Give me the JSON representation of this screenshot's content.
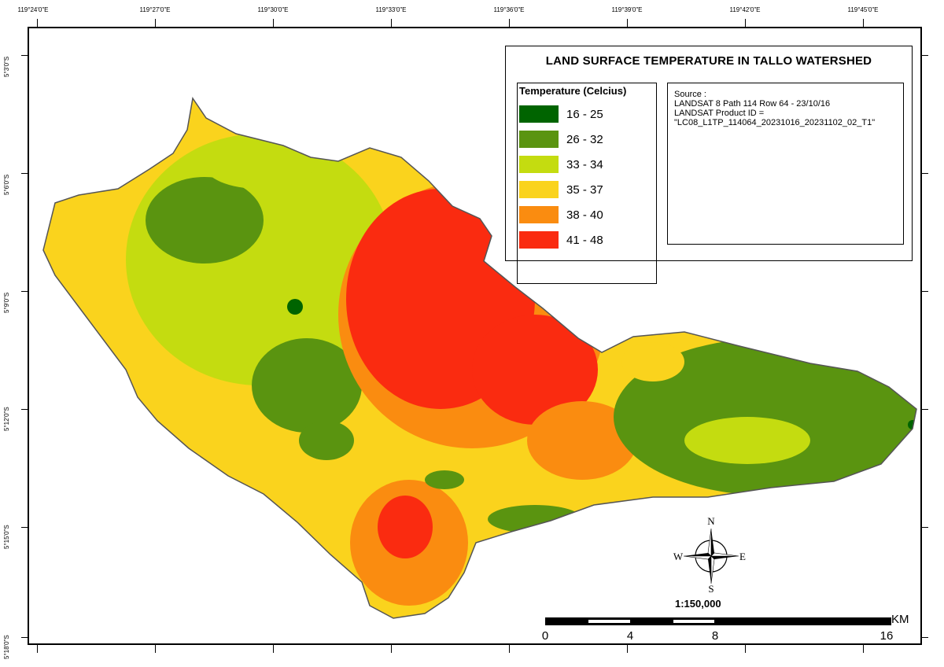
{
  "map": {
    "title": "LAND SURFACE TEMPERATURE IN TALLO WATERSHED",
    "legend_heading": "Temperature (Celcius)",
    "legend": [
      {
        "label": "16 - 25",
        "color": "#006400"
      },
      {
        "label": "26 - 32",
        "color": "#5a9410"
      },
      {
        "label": "33 - 34",
        "color": "#c4dc10"
      },
      {
        "label": "35 - 37",
        "color": "#fad31d"
      },
      {
        "label": "38 - 40",
        "color": "#fa8c10"
      },
      {
        "label": "41 - 48",
        "color": "#fa2b10"
      }
    ],
    "source_lines": [
      "Source :",
      "LANDSAT 8 Path 114 Row 64 - 23/10/16",
      "LANDSAT Product ID =",
      "\"LC08_L1TP_114064_20231016_20231102_02_T1\""
    ],
    "longitude_ticks": [
      "119°24'0\"E",
      "119°27'0\"E",
      "119°30'0\"E",
      "119°33'0\"E",
      "119°36'0\"E",
      "119°39'0\"E",
      "119°42'0\"E",
      "119°45'0\"E"
    ],
    "latitude_ticks": [
      "5°3'0\"S",
      "5°6'0\"S",
      "5°9'0\"S",
      "5°12'0\"S",
      "5°15'0\"S",
      "5°18'0\"S"
    ],
    "compass": {
      "n": "N",
      "s": "S",
      "e": "E",
      "w": "W"
    },
    "scale": "1:150,000",
    "scalebar_labels": [
      "0",
      "4",
      "8",
      "16"
    ],
    "scalebar_unit": "KM"
  }
}
